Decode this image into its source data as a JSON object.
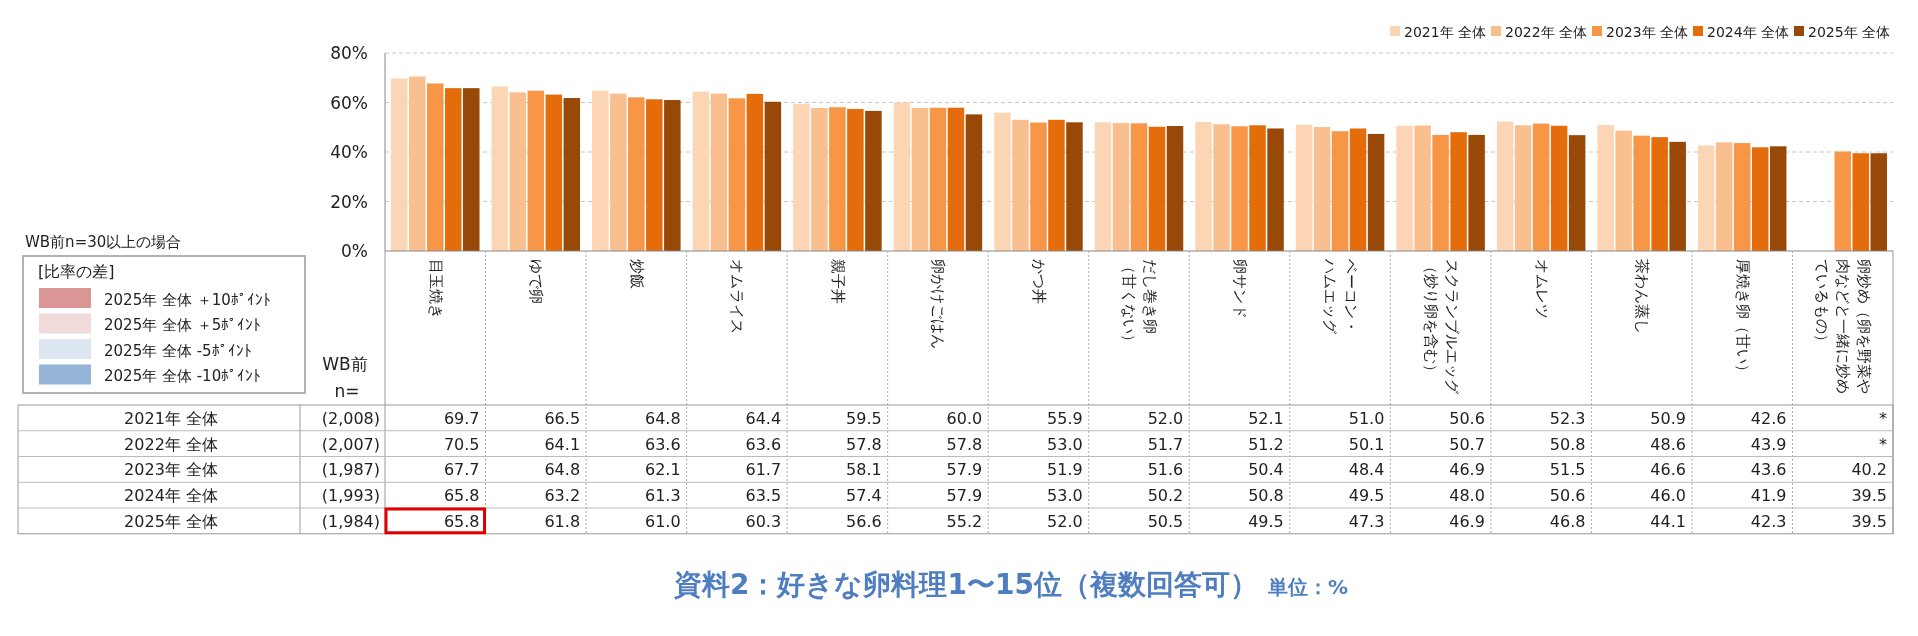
{
  "chart_data": {
    "type": "bar",
    "title": "資料2：好きな卵料理1〜15位（複数回答可）",
    "subtitle": "単位：%",
    "categories": [
      "目玉焼き",
      "ゆで卵",
      "炒飯",
      "オムライス",
      "親子丼",
      "卵かけごはん",
      "かつ丼",
      "だし巻き卵（甘くない）",
      "卵サンド",
      "ベーコン・ハムエッグ",
      "スクランブルエッグ（炒り卵を含む）",
      "オムレツ",
      "茶わん蒸し",
      "厚焼き卵（甘い）",
      "卵炒め（卵を野菜や肉などと一緒に炒めているもの）"
    ],
    "series": [
      {
        "name": "2021年 全体",
        "color": "#fcd5b4",
        "values": [
          69.7,
          66.5,
          64.8,
          64.4,
          59.5,
          60.0,
          55.9,
          52.0,
          52.1,
          51.0,
          50.6,
          52.3,
          50.9,
          42.6,
          null
        ],
        "value_labels": [
          "69.7",
          "66.5",
          "64.8",
          "64.4",
          "59.5",
          "60.0",
          "55.9",
          "52.0",
          "52.1",
          "51.0",
          "50.6",
          "52.3",
          "50.9",
          "42.6",
          "*"
        ]
      },
      {
        "name": "2022年 全体",
        "color": "#fabf8f",
        "values": [
          70.5,
          64.1,
          63.6,
          63.6,
          57.8,
          57.8,
          53.0,
          51.7,
          51.2,
          50.1,
          50.7,
          50.8,
          48.6,
          43.9,
          null
        ],
        "value_labels": [
          "70.5",
          "64.1",
          "63.6",
          "63.6",
          "57.8",
          "57.8",
          "53.0",
          "51.7",
          "51.2",
          "50.1",
          "50.7",
          "50.8",
          "48.6",
          "43.9",
          "*"
        ]
      },
      {
        "name": "2023年 全体",
        "color": "#f79646",
        "values": [
          67.7,
          64.8,
          62.1,
          61.7,
          58.1,
          57.9,
          51.9,
          51.6,
          50.4,
          48.4,
          46.9,
          51.5,
          46.6,
          43.6,
          40.2
        ],
        "value_labels": [
          "67.7",
          "64.8",
          "62.1",
          "61.7",
          "58.1",
          "57.9",
          "51.9",
          "51.6",
          "50.4",
          "48.4",
          "46.9",
          "51.5",
          "46.6",
          "43.6",
          "40.2"
        ]
      },
      {
        "name": "2024年 全体",
        "color": "#e46c0a",
        "values": [
          65.8,
          63.2,
          61.3,
          63.5,
          57.4,
          57.9,
          53.0,
          50.2,
          50.8,
          49.5,
          48.0,
          50.6,
          46.0,
          41.9,
          39.5
        ],
        "value_labels": [
          "65.8",
          "63.2",
          "61.3",
          "63.5",
          "57.4",
          "57.9",
          "53.0",
          "50.2",
          "50.8",
          "49.5",
          "48.0",
          "50.6",
          "46.0",
          "41.9",
          "39.5"
        ]
      },
      {
        "name": "2025年 全体",
        "color": "#984807",
        "values": [
          65.8,
          61.8,
          61.0,
          60.3,
          56.6,
          55.2,
          52.0,
          50.5,
          49.5,
          47.3,
          46.9,
          46.8,
          44.1,
          42.3,
          39.5
        ],
        "value_labels": [
          "65.8",
          "61.8",
          "61.0",
          "60.3",
          "56.6",
          "55.2",
          "52.0",
          "50.5",
          "49.5",
          "47.3",
          "46.9",
          "46.8",
          "44.1",
          "42.3",
          "39.5"
        ]
      }
    ],
    "ylim": [
      0,
      80
    ],
    "yticks": [
      {
        "value": 0,
        "label": "0%"
      },
      {
        "value": 20,
        "label": "20%"
      },
      {
        "value": 40,
        "label": "40%"
      },
      {
        "value": 60,
        "label": "60%"
      },
      {
        "value": 80,
        "label": "80%"
      }
    ],
    "grid": "y",
    "legend": "top right",
    "annotations": [
      "WB前n=30以上の場合",
      "[比率の差]",
      "2025年 全体 ＋10ﾎﾟｲﾝﾄ",
      "2025年 全体 ＋5ﾎﾟｲﾝﾄ",
      "2025年 全体 -5ﾎﾟｲﾝﾄ",
      "2025年 全体 -10ﾎﾟｲﾝﾄ",
      "WB前",
      "n=",
      "(2,008)",
      "(2,007)",
      "(1,987)",
      "(1,993)",
      "(1,984)"
    ]
  }
}
